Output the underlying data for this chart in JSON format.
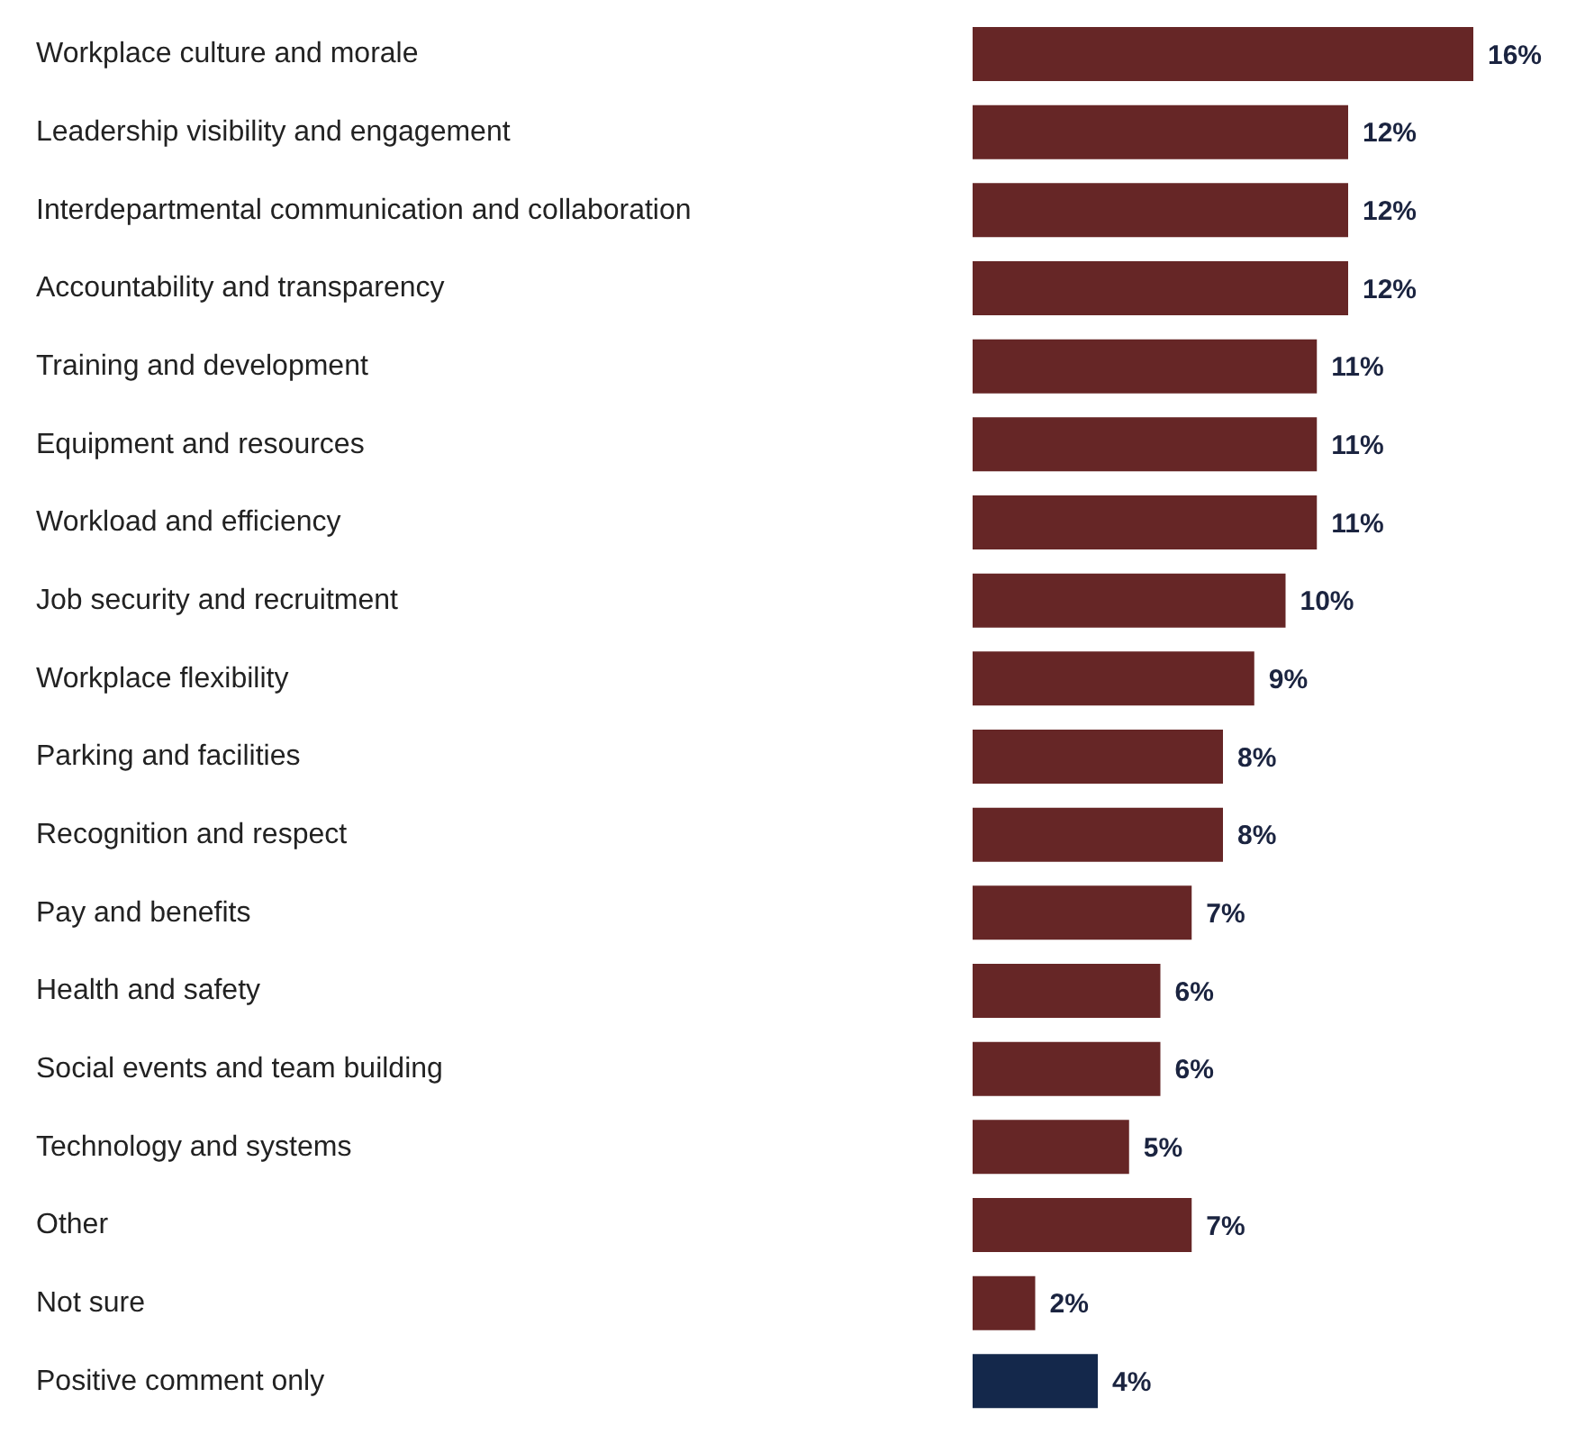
{
  "chart_data": {
    "type": "bar",
    "orientation": "horizontal",
    "categories": [
      "Workplace culture and morale",
      "Leadership visibility and engagement",
      "Interdepartmental communication and collaboration",
      "Accountability and transparency",
      "Training and development",
      "Equipment and resources",
      "Workload and efficiency",
      "Job security and recruitment",
      "Workplace flexibility",
      "Parking and facilities",
      "Recognition and respect",
      "Pay and benefits",
      "Health and safety",
      "Social events and team building",
      "Technology and systems",
      "Other",
      "Not sure",
      "Positive comment only"
    ],
    "values": [
      16,
      12,
      12,
      12,
      11,
      11,
      11,
      10,
      9,
      8,
      8,
      7,
      6,
      6,
      5,
      7,
      2,
      4
    ],
    "colors": [
      "#662626",
      "#662626",
      "#662626",
      "#662626",
      "#662626",
      "#662626",
      "#662626",
      "#662626",
      "#662626",
      "#662626",
      "#662626",
      "#662626",
      "#662626",
      "#662626",
      "#662626",
      "#662626",
      "#662626",
      "#14284b"
    ],
    "value_labels": [
      "16%",
      "12%",
      "12%",
      "12%",
      "11%",
      "11%",
      "11%",
      "10%",
      "9%",
      "8%",
      "8%",
      "7%",
      "6%",
      "6%",
      "5%",
      "7%",
      "2%",
      "4%"
    ],
    "grid": false,
    "legend": false
  }
}
